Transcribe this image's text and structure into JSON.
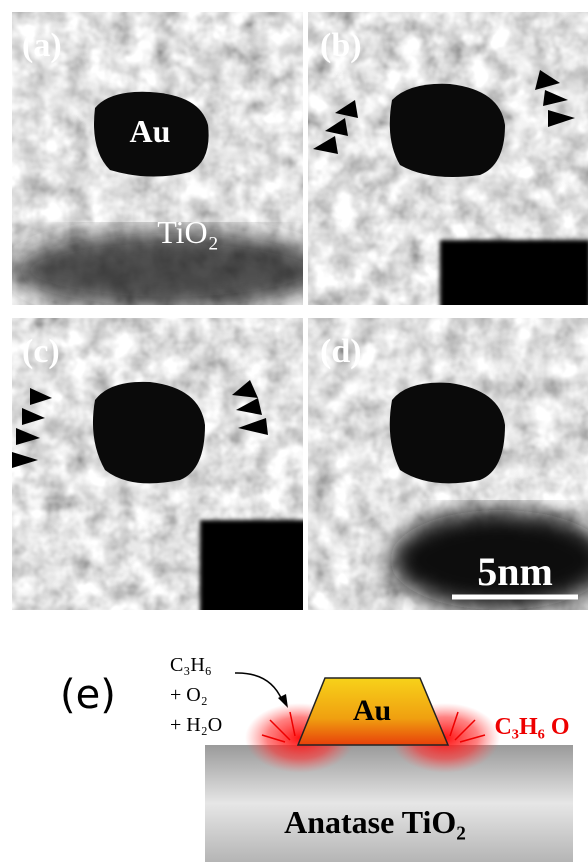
{
  "panels": [
    {
      "label": "(a)"
    },
    {
      "label": "(b)"
    },
    {
      "label": "(c)"
    },
    {
      "label": "(d)"
    }
  ],
  "panel_a_particle": "Au",
  "panel_a_support": "TiO₂",
  "scale_bar": "5nm",
  "schematic": {
    "label": "(e)",
    "reactants": [
      "C₃H₆",
      "+ O₂",
      "+ H₂O"
    ],
    "particle": "Au",
    "product": "C₃H₆ O",
    "support": "Anatase TiO₂"
  }
}
